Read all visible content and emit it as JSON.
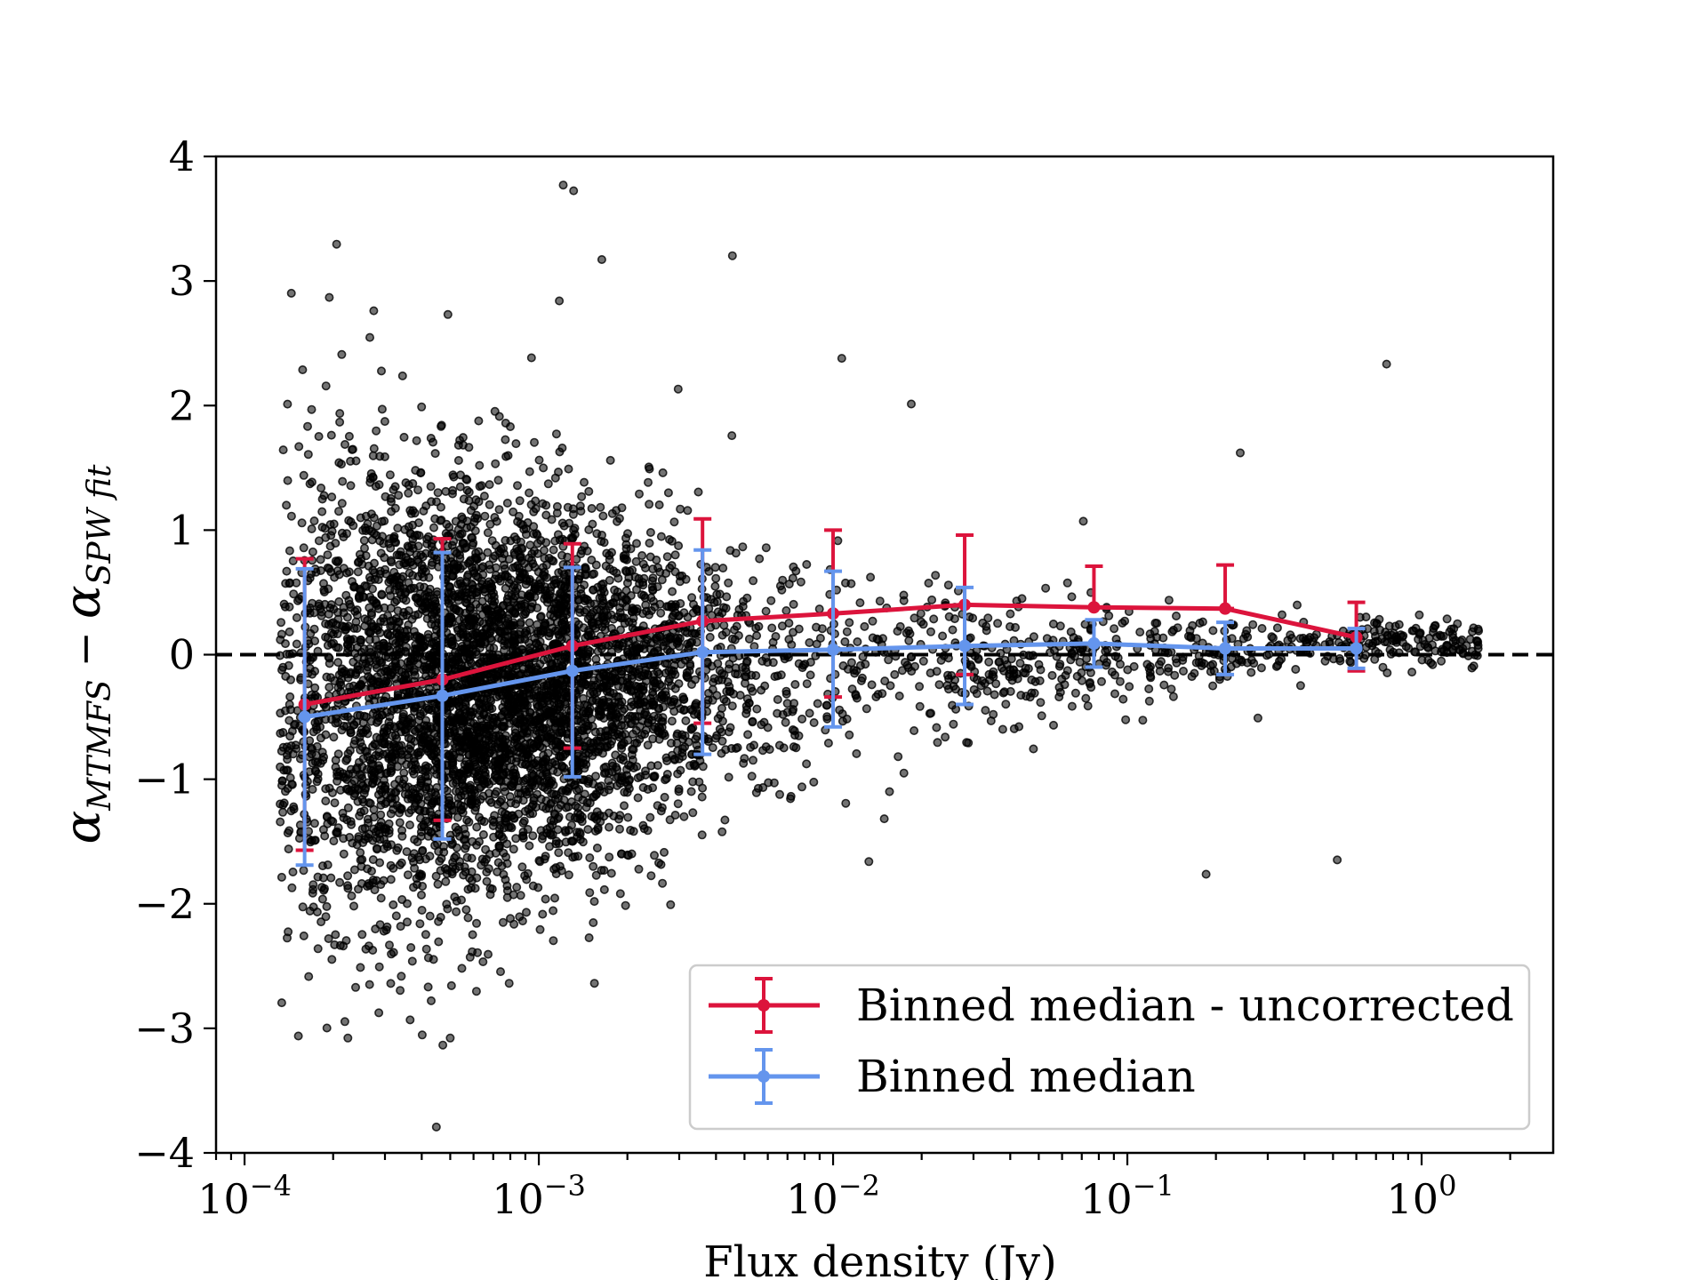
{
  "chart_data": {
    "type": "scatter",
    "title": "",
    "xlabel": "Flux density (Jy)",
    "ylabel": {
      "base": "α",
      "sub1": "MTMFS",
      "minus": "−",
      "sub2": "SPW fit"
    },
    "xscale": "log",
    "xlim": [
      8e-05,
      2.8
    ],
    "ylim": [
      -4,
      4
    ],
    "x_tick_labels": [
      {
        "value": 0.0001,
        "base": "10",
        "exp": "−4"
      },
      {
        "value": 0.001,
        "base": "10",
        "exp": "−3"
      },
      {
        "value": 0.01,
        "base": "10",
        "exp": "−2"
      },
      {
        "value": 0.1,
        "base": "10",
        "exp": "−1"
      },
      {
        "value": 1,
        "base": "10",
        "exp": "0"
      }
    ],
    "y_ticks": [
      {
        "value": -4,
        "label": "−4"
      },
      {
        "value": -3,
        "label": "−3"
      },
      {
        "value": -2,
        "label": "−2"
      },
      {
        "value": -1,
        "label": "−1"
      },
      {
        "value": 0,
        "label": "0"
      },
      {
        "value": 1,
        "label": "1"
      },
      {
        "value": 2,
        "label": "2"
      },
      {
        "value": 3,
        "label": "3"
      },
      {
        "value": 4,
        "label": "4"
      }
    ],
    "reference_line": {
      "y": 0,
      "style": "dashed",
      "color": "#000000"
    },
    "scatter": {
      "name": "sources",
      "color": "#000000",
      "approx_count": 6000,
      "seed": 12345
    },
    "series": [
      {
        "name": "Binned median - uncorrected",
        "color": "#dc143c",
        "x": [
          0.00016,
          0.00047,
          0.0013,
          0.0036,
          0.01,
          0.028,
          0.077,
          0.215,
          0.6
        ],
        "y": [
          -0.4,
          -0.2,
          0.07,
          0.27,
          0.33,
          0.4,
          0.38,
          0.37,
          0.14
        ],
        "err_low": [
          1.17,
          1.13,
          0.82,
          0.82,
          0.67,
          0.56,
          0.0,
          0.0,
          0.27
        ],
        "err_high": [
          1.17,
          1.13,
          0.82,
          0.82,
          0.67,
          0.56,
          0.33,
          0.35,
          0.28
        ]
      },
      {
        "name": "Binned median",
        "color": "#6495ed",
        "x": [
          0.00016,
          0.00047,
          0.0013,
          0.0036,
          0.01,
          0.028,
          0.077,
          0.215,
          0.6
        ],
        "y": [
          -0.5,
          -0.33,
          -0.13,
          0.02,
          0.04,
          0.07,
          0.09,
          0.05,
          0.05
        ],
        "err_low": [
          1.19,
          1.15,
          0.85,
          0.82,
          0.62,
          0.47,
          0.19,
          0.21,
          0.16
        ],
        "err_high": [
          1.19,
          1.15,
          0.83,
          0.82,
          0.63,
          0.47,
          0.19,
          0.21,
          0.16
        ]
      }
    ],
    "legend": {
      "position": "lower-right",
      "entries": [
        "Binned median - uncorrected",
        "Binned median"
      ]
    }
  }
}
